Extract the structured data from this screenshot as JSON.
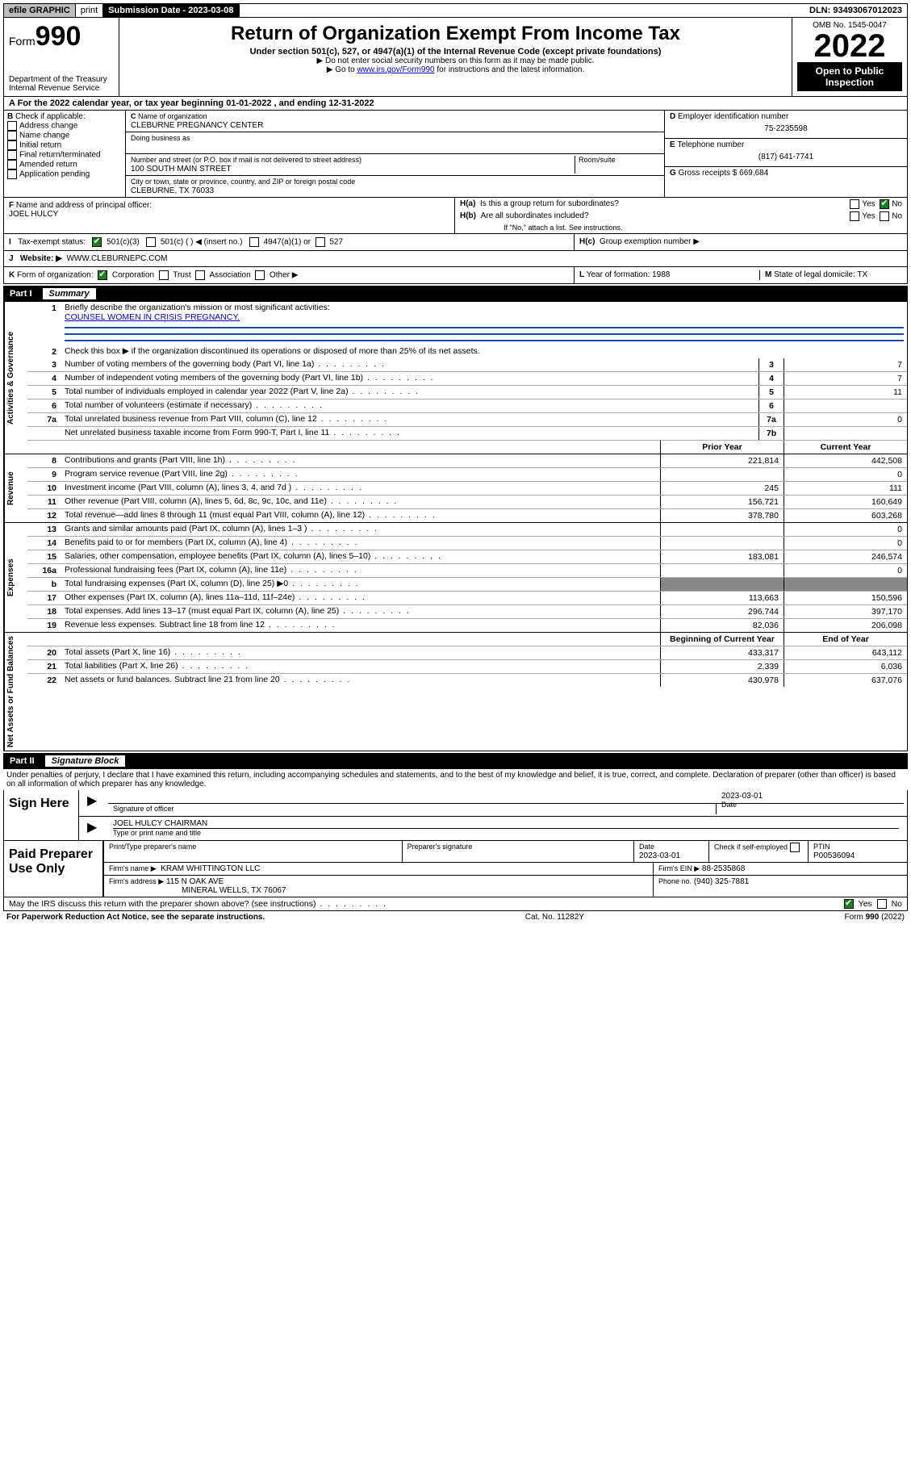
{
  "colors": {
    "accent_blue": "#1a4aa0",
    "accent_green": "#1a7f1a",
    "grey_bg": "#bdbdbd"
  },
  "topbar": {
    "efile": "efile GRAPHIC",
    "print": "print",
    "subdate_label": "Submission Date - 2023-03-08",
    "dln": "DLN: 93493067012023"
  },
  "header": {
    "form_prefix": "Form",
    "form_num": "990",
    "dept1": "Department of the Treasury",
    "dept2": "Internal Revenue Service",
    "title": "Return of Organization Exempt From Income Tax",
    "sub1": "Under section 501(c), 527, or 4947(a)(1) of the Internal Revenue Code (except private foundations)",
    "sub2": "Do not enter social security numbers on this form as it may be made public.",
    "sub3_pre": "Go to ",
    "sub3_link": "www.irs.gov/Form990",
    "sub3_post": " for instructions and the latest information.",
    "omb": "OMB No. 1545-0047",
    "year": "2022",
    "open": "Open to Public Inspection"
  },
  "period": {
    "prefix": "For the 2022 calendar year, or tax year beginning ",
    "begin": "01-01-2022",
    "mid": " , and ending ",
    "end": "12-31-2022"
  },
  "boxB": {
    "label": "Check if applicable:",
    "opts": [
      "Address change",
      "Name change",
      "Initial return",
      "Final return/terminated",
      "Amended return",
      "Application pending"
    ]
  },
  "boxC": {
    "label": "Name of organization",
    "name": "CLEBURNE PREGNANCY CENTER",
    "dba_label": "Doing business as",
    "street_label": "Number and street (or P.O. box if mail is not delivered to street address)",
    "room_label": "Room/suite",
    "street": "100 SOUTH MAIN STREET",
    "city_label": "City or town, state or province, country, and ZIP or foreign postal code",
    "city": "CLEBURNE, TX  76033"
  },
  "boxD": {
    "label": "Employer identification number",
    "val": "75-2235598"
  },
  "boxE": {
    "label": "Telephone number",
    "val": "(817) 641-7741"
  },
  "boxG": {
    "label": "Gross receipts $",
    "val": "669,684"
  },
  "boxF": {
    "label": "Name and address of principal officer:",
    "name": "JOEL HULCY"
  },
  "boxH": {
    "ha": "Is this a group return for subordinates?",
    "hb": "Are all subordinates included?",
    "hb_note": "If \"No,\" attach a list. See instructions.",
    "hc": "Group exemption number ▶"
  },
  "boxI": {
    "label": "Tax-exempt status:",
    "o1": "501(c)(3)",
    "o2": "501(c) (  ) ◀ (insert no.)",
    "o3": "4947(a)(1) or",
    "o4": "527"
  },
  "boxJ": {
    "label": "Website: ▶",
    "val": "WWW.CLEBURNEPC.COM"
  },
  "boxK": {
    "label": "Form of organization:",
    "opts": [
      "Corporation",
      "Trust",
      "Association",
      "Other ▶"
    ]
  },
  "boxL": {
    "label": "Year of formation:",
    "val": "1988"
  },
  "boxM": {
    "label": "State of legal domicile:",
    "val": "TX"
  },
  "part1": {
    "name": "Part I",
    "title": "Summary"
  },
  "vtabs": {
    "gov": "Activities & Governance",
    "rev": "Revenue",
    "exp": "Expenses",
    "net": "Net Assets or Fund Balances"
  },
  "summary_gov": {
    "l1": "Briefly describe the organization's mission or most significant activities:",
    "l1_val": "COUNSEL WOMEN IN CRISIS PREGNANCY.",
    "l2": "Check this box ▶  if the organization discontinued its operations or disposed of more than 25% of its net assets.",
    "rows": [
      {
        "n": "3",
        "t": "Number of voting members of the governing body (Part VI, line 1a)",
        "b": "3",
        "v": "7"
      },
      {
        "n": "4",
        "t": "Number of independent voting members of the governing body (Part VI, line 1b)",
        "b": "4",
        "v": "7"
      },
      {
        "n": "5",
        "t": "Total number of individuals employed in calendar year 2022 (Part V, line 2a)",
        "b": "5",
        "v": "11"
      },
      {
        "n": "6",
        "t": "Total number of volunteers (estimate if necessary)",
        "b": "6",
        "v": ""
      },
      {
        "n": "7a",
        "t": "Total unrelated business revenue from Part VIII, column (C), line 12",
        "b": "7a",
        "v": "0"
      },
      {
        "n": "",
        "t": "Net unrelated business taxable income from Form 990-T, Part I, line 11",
        "b": "7b",
        "v": ""
      }
    ]
  },
  "cols_hdr": {
    "prior": "Prior Year",
    "current": "Current Year",
    "beg": "Beginning of Current Year",
    "end": "End of Year"
  },
  "rev_rows": [
    {
      "n": "8",
      "t": "Contributions and grants (Part VIII, line 1h)",
      "p": "221,814",
      "c": "442,508"
    },
    {
      "n": "9",
      "t": "Program service revenue (Part VIII, line 2g)",
      "p": "",
      "c": "0"
    },
    {
      "n": "10",
      "t": "Investment income (Part VIII, column (A), lines 3, 4, and 7d )",
      "p": "245",
      "c": "111"
    },
    {
      "n": "11",
      "t": "Other revenue (Part VIII, column (A), lines 5, 6d, 8c, 9c, 10c, and 11e)",
      "p": "156,721",
      "c": "160,649"
    },
    {
      "n": "12",
      "t": "Total revenue—add lines 8 through 11 (must equal Part VIII, column (A), line 12)",
      "p": "378,780",
      "c": "603,268"
    }
  ],
  "exp_rows": [
    {
      "n": "13",
      "t": "Grants and similar amounts paid (Part IX, column (A), lines 1–3 )",
      "p": "",
      "c": "0"
    },
    {
      "n": "14",
      "t": "Benefits paid to or for members (Part IX, column (A), line 4)",
      "p": "",
      "c": "0"
    },
    {
      "n": "15",
      "t": "Salaries, other compensation, employee benefits (Part IX, column (A), lines 5–10)",
      "p": "183,081",
      "c": "246,574"
    },
    {
      "n": "16a",
      "t": "Professional fundraising fees (Part IX, column (A), line 11e)",
      "p": "",
      "c": "0"
    },
    {
      "n": "b",
      "t": "Total fundraising expenses (Part IX, column (D), line 25) ▶0",
      "p": "",
      "c": ""
    },
    {
      "n": "17",
      "t": "Other expenses (Part IX, column (A), lines 11a–11d, 11f–24e)",
      "p": "113,663",
      "c": "150,596"
    },
    {
      "n": "18",
      "t": "Total expenses. Add lines 13–17 (must equal Part IX, column (A), line 25)",
      "p": "296,744",
      "c": "397,170"
    },
    {
      "n": "19",
      "t": "Revenue less expenses. Subtract line 18 from line 12",
      "p": "82,036",
      "c": "206,098"
    }
  ],
  "net_rows": [
    {
      "n": "20",
      "t": "Total assets (Part X, line 16)",
      "p": "433,317",
      "c": "643,112"
    },
    {
      "n": "21",
      "t": "Total liabilities (Part X, line 26)",
      "p": "2,339",
      "c": "6,036"
    },
    {
      "n": "22",
      "t": "Net assets or fund balances. Subtract line 21 from line 20",
      "p": "430,978",
      "c": "637,076"
    }
  ],
  "part2": {
    "name": "Part II",
    "title": "Signature Block"
  },
  "perjury": "Under penalties of perjury, I declare that I have examined this return, including accompanying schedules and statements, and to the best of my knowledge and belief, it is true, correct, and complete. Declaration of preparer (other than officer) is based on all information of which preparer has any knowledge.",
  "sign": {
    "label": "Sign Here",
    "sig_of_officer": "Signature of officer",
    "date": "Date",
    "date_val": "2023-03-01",
    "name": "JOEL HULCY  CHAIRMAN",
    "name_label": "Type or print name and title"
  },
  "prep": {
    "label": "Paid Preparer Use Only",
    "h1": "Print/Type preparer's name",
    "h2": "Preparer's signature",
    "h3": "Date",
    "date": "2023-03-01",
    "h4": "Check  if self-employed",
    "h5": "PTIN",
    "ptin": "P00536094",
    "firm_name_l": "Firm's name   ▶",
    "firm_name": "KRAM WHITTINGTON LLC",
    "firm_ein_l": "Firm's EIN ▶",
    "firm_ein": "88-2535868",
    "firm_addr_l": "Firm's address ▶",
    "firm_addr1": "115 N OAK AVE",
    "firm_addr2": "MINERAL WELLS, TX  76067",
    "phone_l": "Phone no.",
    "phone": "(940) 325-7881"
  },
  "discuss": "May the IRS discuss this return with the preparer shown above? (see instructions)",
  "footer": {
    "left": "For Paperwork Reduction Act Notice, see the separate instructions.",
    "mid": "Cat. No. 11282Y",
    "right_pre": "Form ",
    "right_b": "990",
    "right_suf": " (2022)"
  }
}
